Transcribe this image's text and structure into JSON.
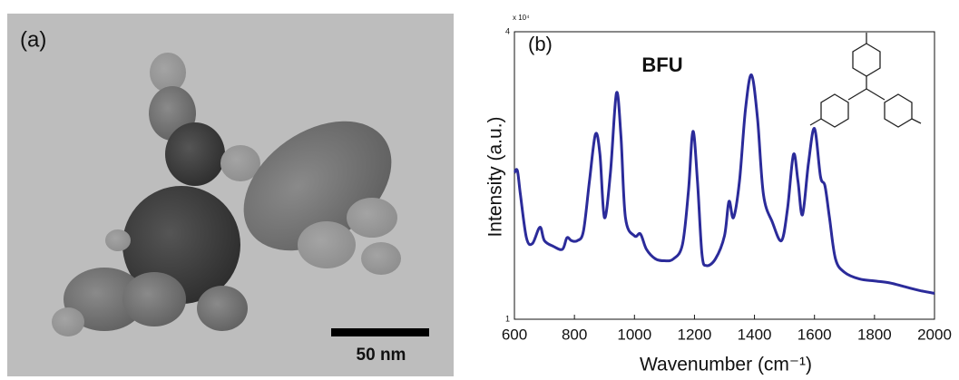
{
  "panel_a": {
    "label": "(a)",
    "scale_bar": "50 nm"
  },
  "chart_data": {
    "type": "line",
    "panel_label": "(b)",
    "title": "BFU",
    "x_label": "Wavenumber (cm⁻¹)",
    "y_label": "Intensity (a.u.)",
    "y_multiplier": "x 10⁴",
    "xlim": [
      600,
      2000
    ],
    "xticks": [
      600,
      800,
      1000,
      1200,
      1400,
      1600,
      1800,
      2000
    ],
    "ylim": [
      1,
      4
    ],
    "yticks": [
      1,
      4
    ],
    "series": [
      {
        "color": "#2b2b9a",
        "x": [
          600,
          610,
          620,
          640,
          660,
          685,
          700,
          730,
          760,
          775,
          790,
          810,
          830,
          850,
          870,
          885,
          900,
          920,
          940,
          955,
          970,
          1000,
          1020,
          1040,
          1070,
          1100,
          1130,
          1160,
          1180,
          1195,
          1210,
          1225,
          1240,
          1270,
          1300,
          1315,
          1330,
          1350,
          1370,
          1390,
          1410,
          1430,
          1460,
          1490,
          1510,
          1530,
          1545,
          1560,
          1580,
          1600,
          1620,
          1635,
          1650,
          1670,
          1700,
          1750,
          1800,
          1850,
          1900,
          1950,
          2000
        ],
        "values": [
          2.53,
          2.55,
          2.3,
          1.85,
          1.79,
          1.96,
          1.82,
          1.76,
          1.73,
          1.85,
          1.82,
          1.82,
          1.92,
          2.44,
          2.93,
          2.72,
          2.06,
          2.53,
          3.36,
          2.91,
          2.06,
          1.87,
          1.89,
          1.73,
          1.63,
          1.61,
          1.63,
          1.78,
          2.34,
          2.96,
          2.44,
          1.68,
          1.56,
          1.63,
          1.87,
          2.23,
          2.06,
          2.44,
          3.19,
          3.55,
          3.1,
          2.3,
          2.01,
          1.82,
          2.15,
          2.72,
          2.44,
          2.09,
          2.63,
          2.99,
          2.49,
          2.39,
          2.06,
          1.63,
          1.49,
          1.42,
          1.4,
          1.38,
          1.34,
          1.3,
          1.27
        ]
      }
    ]
  }
}
